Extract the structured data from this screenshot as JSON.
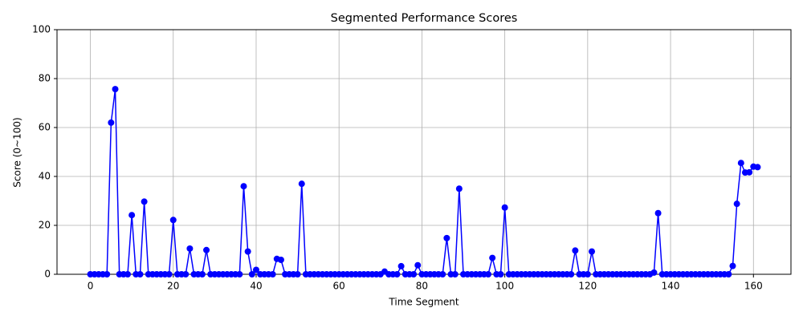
{
  "chart_data": {
    "type": "line",
    "title": "Segmented Performance Scores",
    "x_label": "Time Segment",
    "y_label": "Score (0~100)",
    "x": [
      0,
      1,
      2,
      3,
      4,
      5,
      6,
      7,
      8,
      9,
      10,
      11,
      12,
      13,
      14,
      15,
      16,
      17,
      18,
      19,
      20,
      21,
      22,
      23,
      24,
      25,
      26,
      27,
      28,
      29,
      30,
      31,
      32,
      33,
      34,
      35,
      36,
      37,
      38,
      39,
      40,
      41,
      42,
      43,
      44,
      45,
      46,
      47,
      48,
      49,
      50,
      51,
      52,
      53,
      54,
      55,
      56,
      57,
      58,
      59,
      60,
      61,
      62,
      63,
      64,
      65,
      66,
      67,
      68,
      69,
      70,
      71,
      72,
      73,
      74,
      75,
      76,
      77,
      78,
      79,
      80,
      81,
      82,
      83,
      84,
      85,
      86,
      87,
      88,
      89,
      90,
      91,
      92,
      93,
      94,
      95,
      96,
      97,
      98,
      99,
      100,
      101,
      102,
      103,
      104,
      105,
      106,
      107,
      108,
      109,
      110,
      111,
      112,
      113,
      114,
      115,
      116,
      117,
      118,
      119,
      120,
      121,
      122,
      123,
      124,
      125,
      126,
      127,
      128,
      129,
      130,
      131,
      132,
      133,
      134,
      135,
      136,
      137,
      138,
      139,
      140,
      141,
      142,
      143,
      144,
      145,
      146,
      147,
      148,
      149,
      150,
      151,
      152,
      153,
      154,
      155,
      156,
      157,
      158,
      159,
      160,
      161
    ],
    "series": [
      {
        "color": "#0000ff",
        "values": [
          0,
          0,
          0,
          0,
          0,
          62,
          75.7,
          0,
          0,
          0,
          24.2,
          0,
          0,
          29.7,
          0,
          0,
          0,
          0,
          0,
          0,
          22.2,
          0,
          0,
          0,
          10.5,
          0,
          0,
          0,
          9.9,
          0,
          0,
          0,
          0,
          0,
          0,
          0,
          0,
          36,
          9.3,
          0,
          1.8,
          0,
          0,
          0,
          0,
          6.3,
          5.9,
          0,
          0,
          0,
          0,
          37,
          0,
          0,
          0,
          0,
          0,
          0,
          0,
          0,
          0,
          0,
          0,
          0,
          0,
          0,
          0,
          0,
          0,
          0,
          0,
          1.1,
          0,
          0,
          0,
          3.3,
          0,
          0,
          0,
          3.7,
          0,
          0,
          0,
          0,
          0,
          0,
          14.8,
          0,
          0,
          35,
          0,
          0,
          0,
          0,
          0,
          0,
          0,
          6.7,
          0,
          0,
          27.3,
          0,
          0,
          0,
          0,
          0,
          0,
          0,
          0,
          0,
          0,
          0,
          0,
          0,
          0,
          0,
          0,
          9.7,
          0,
          0,
          0,
          9.3,
          0,
          0,
          0,
          0,
          0,
          0,
          0,
          0,
          0,
          0,
          0,
          0,
          0,
          0,
          0.7,
          25,
          0,
          0,
          0,
          0,
          0,
          0,
          0,
          0,
          0,
          0,
          0,
          0,
          0,
          0,
          0,
          0,
          0,
          3.4,
          28.8,
          45.5,
          41.6,
          41.7,
          44,
          43.8
        ]
      }
    ],
    "xlim": [
      -8.05,
      169.05
    ],
    "xticks": [
      0,
      20,
      40,
      60,
      80,
      100,
      120,
      140,
      160
    ],
    "ylim": [
      0,
      100
    ],
    "yticks": [
      0,
      20,
      40,
      60,
      80,
      100
    ],
    "grid": true
  }
}
